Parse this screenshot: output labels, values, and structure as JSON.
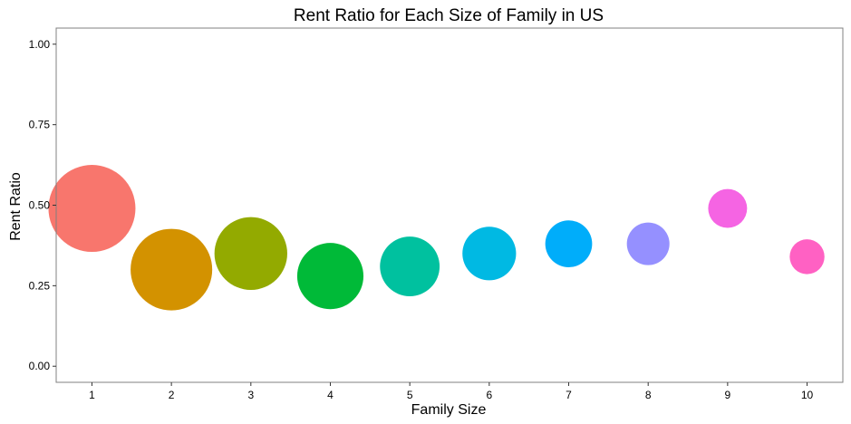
{
  "chart_data": {
    "type": "scatter",
    "title": "Rent Ratio for Each Size of Family in US",
    "xlabel": "Family Size",
    "ylabel": "Rent Ratio",
    "xlim": [
      0.55,
      10.45
    ],
    "ylim": [
      -0.05,
      1.05
    ],
    "xticks": [
      1,
      2,
      3,
      4,
      5,
      6,
      7,
      8,
      9,
      10
    ],
    "yticks": [
      0.0,
      0.25,
      0.5,
      0.75,
      1.0
    ],
    "ytick_labels": [
      "0.00",
      "0.25",
      "0.50",
      "0.75",
      "1.00"
    ],
    "grid": false,
    "legend": "none",
    "points": [
      {
        "x": 1,
        "y": 0.49,
        "size": 1.0,
        "color": "#F8766D"
      },
      {
        "x": 2,
        "y": 0.3,
        "size": 0.88,
        "color": "#D39200"
      },
      {
        "x": 3,
        "y": 0.35,
        "size": 0.7,
        "color": "#93AA00"
      },
      {
        "x": 4,
        "y": 0.28,
        "size": 0.58,
        "color": "#00BA38"
      },
      {
        "x": 5,
        "y": 0.31,
        "size": 0.47,
        "color": "#00C19F"
      },
      {
        "x": 6,
        "y": 0.35,
        "size": 0.38,
        "color": "#00B9E3"
      },
      {
        "x": 7,
        "y": 0.38,
        "size": 0.29,
        "color": "#00ADFA"
      },
      {
        "x": 8,
        "y": 0.38,
        "size": 0.24,
        "color": "#9590FF"
      },
      {
        "x": 9,
        "y": 0.49,
        "size": 0.2,
        "color": "#F564E3"
      },
      {
        "x": 10,
        "y": 0.34,
        "size": 0.16,
        "color": "#FF61C3"
      }
    ]
  }
}
